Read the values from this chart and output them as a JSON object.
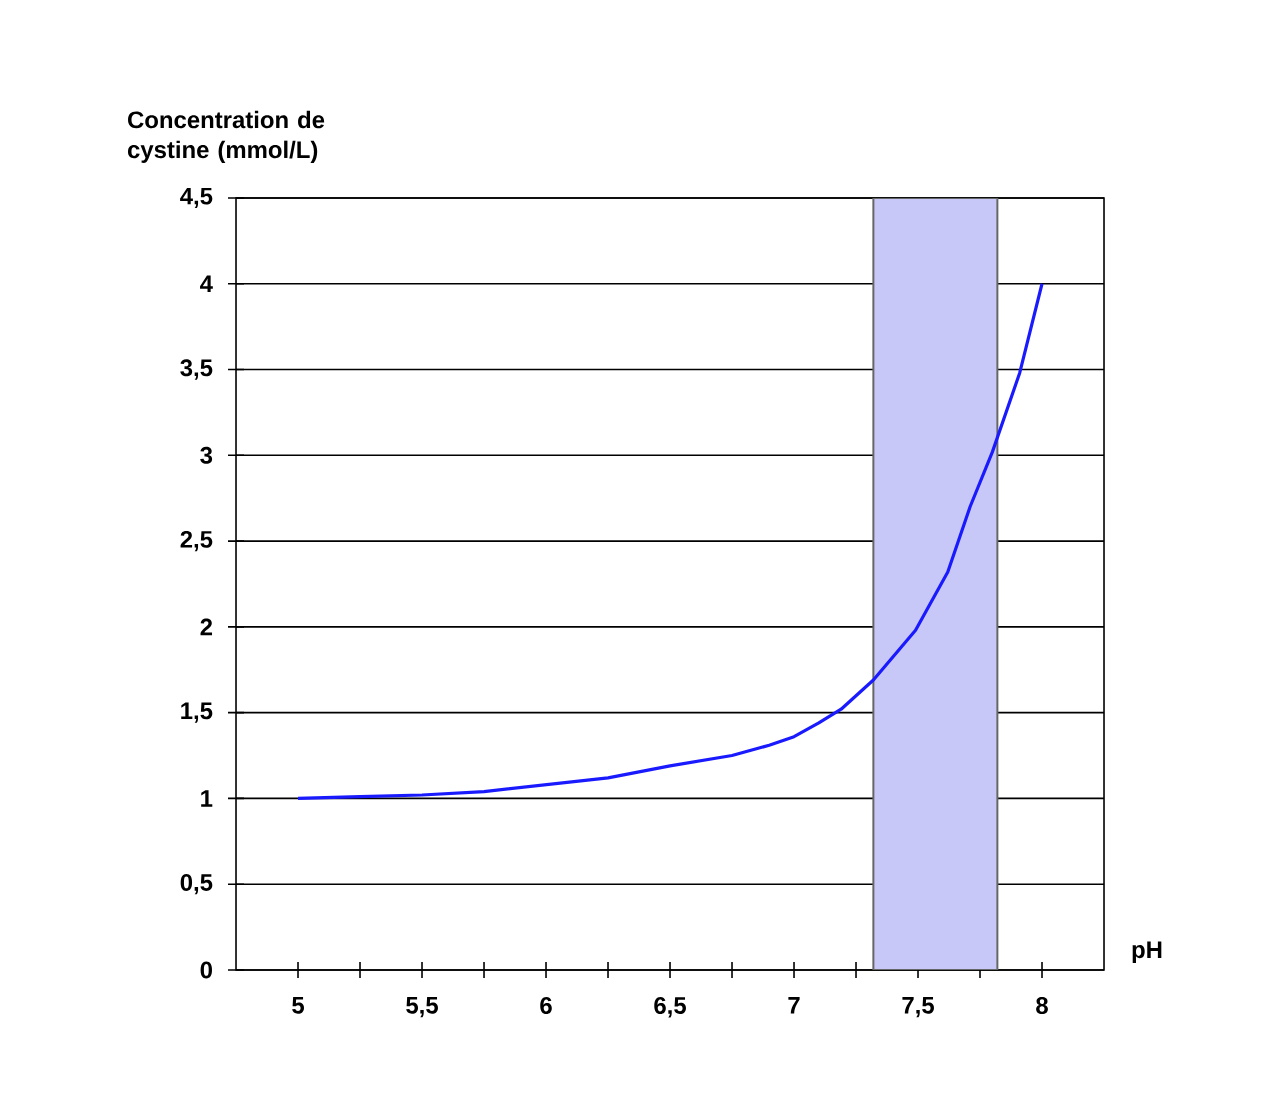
{
  "chart_data": {
    "type": "line",
    "xlabel": "pH",
    "ylabel": "Concentration de cystine (mmol/L)",
    "x": [
      5,
      5.25,
      5.5,
      5.75,
      6,
      6.25,
      6.5,
      6.75,
      6.9,
      7,
      7.1,
      7.19,
      7.32,
      7.49,
      7.62,
      7.71,
      7.8,
      7.91,
      8
    ],
    "series": [
      {
        "color": "#1a1aff",
        "values": [
          1.0,
          1.01,
          1.02,
          1.04,
          1.08,
          1.12,
          1.19,
          1.25,
          1.31,
          1.36,
          1.44,
          1.52,
          1.69,
          1.98,
          2.32,
          2.7,
          3.02,
          3.48,
          4.0
        ]
      }
    ],
    "xlim": [
      4.75,
      8.25
    ],
    "ylim": [
      0,
      4.5
    ],
    "xticks": [
      5,
      {
        "value": 5.25,
        "label": null
      },
      {
        "value": 5.5,
        "label": "5,5"
      },
      {
        "value": 5.75,
        "label": null
      },
      6,
      {
        "value": 6.25,
        "label": null
      },
      {
        "value": 6.5,
        "label": "6,5"
      },
      {
        "value": 6.75,
        "label": null
      },
      7,
      {
        "value": 7.25,
        "label": null
      },
      {
        "value": 7.5,
        "label": "7,5"
      },
      {
        "value": 7.75,
        "label": null
      },
      8
    ],
    "yticks": [
      0,
      {
        "value": 0.5,
        "label": "0,5"
      },
      1,
      {
        "value": 1.5,
        "label": "1,5"
      },
      2,
      {
        "value": 2.5,
        "label": "2,5"
      },
      3,
      {
        "value": 3.5,
        "label": "3,5"
      },
      4,
      {
        "value": 4.5,
        "label": "4,5"
      }
    ],
    "bands": [
      {
        "axis": "x",
        "from": 7.32,
        "to": 7.82,
        "color": "#c8c8f8"
      }
    ],
    "grid": "y",
    "marker": "none",
    "line_style": "solid"
  }
}
